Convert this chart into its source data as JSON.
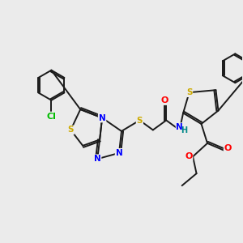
{
  "bg_color": "#ebebeb",
  "bond_color": "#1a1a1a",
  "atom_colors": {
    "S": "#ccaa00",
    "N": "#0000ff",
    "O": "#ff0000",
    "Cl": "#00bb00",
    "C": "#1a1a1a",
    "H": "#008888"
  },
  "lw": 1.4,
  "fontsize": 7.5
}
